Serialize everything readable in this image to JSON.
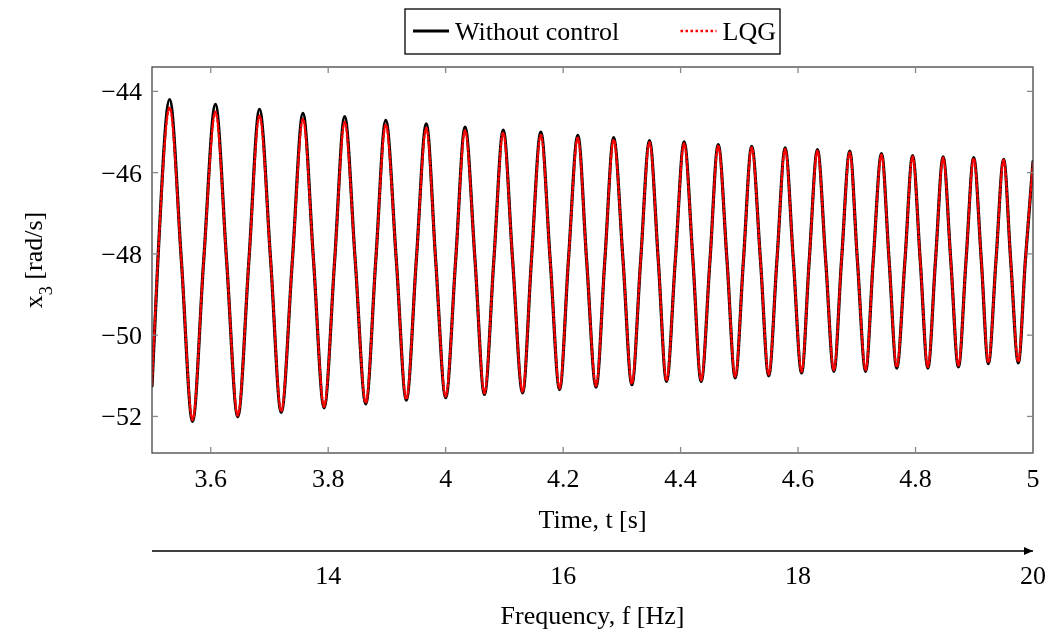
{
  "chart_data": {
    "type": "line",
    "xlabel": "Time, t [s]",
    "ylabel": "x$_{3}$ [rad/s]",
    "x2label": "Frequency, f [Hz]",
    "xlim": [
      3.5,
      5
    ],
    "xticks": [
      {
        "value": 3.6,
        "label": "3.6"
      },
      {
        "value": 3.8,
        "label": "3.8"
      },
      4,
      {
        "value": 4.2,
        "label": "4.2"
      },
      {
        "value": 4.4,
        "label": "4.4"
      },
      {
        "value": 4.6,
        "label": "4.6"
      },
      {
        "value": 4.8,
        "label": "4.8"
      },
      5
    ],
    "x2lim": [
      12.5,
      20
    ],
    "x2ticks": [
      14,
      16,
      18,
      20
    ],
    "ylim": [
      -52.9,
      -43.4
    ],
    "yticks": [
      {
        "value": -52,
        "label": "−52"
      },
      {
        "value": -50,
        "label": "−50"
      },
      {
        "value": -48,
        "label": "−48"
      },
      {
        "value": -46,
        "label": "−46"
      },
      {
        "value": -44,
        "label": "−44"
      }
    ],
    "grid": false,
    "legend": "top",
    "marker": "none",
    "x": [
      3.5,
      3.51,
      3.53,
      3.55,
      3.569,
      3.588,
      3.608,
      3.627,
      3.646,
      3.665,
      3.683,
      3.702,
      3.72,
      3.739,
      3.757,
      3.775,
      3.793,
      3.811,
      3.828,
      3.846,
      3.864,
      3.881,
      3.898,
      3.916,
      3.933,
      3.95,
      3.967,
      3.983,
      4.0,
      4.017,
      4.033,
      4.05,
      4.066,
      4.082,
      4.098,
      4.114,
      4.131,
      4.146,
      4.162,
      4.178,
      4.194,
      4.209,
      4.225,
      4.24,
      4.256,
      4.271,
      4.286,
      4.302,
      4.317,
      4.332,
      4.347,
      4.362,
      4.376,
      4.391,
      4.406,
      4.421,
      4.435,
      4.45,
      4.464,
      4.479,
      4.493,
      4.507,
      4.521,
      4.536,
      4.55,
      4.564,
      4.578,
      4.592,
      4.606,
      4.619,
      4.633,
      4.647,
      4.661,
      4.674,
      4.688,
      4.701,
      4.715,
      4.728,
      4.742,
      4.755,
      4.768,
      4.782,
      4.795,
      4.808,
      4.821,
      4.834,
      4.847,
      4.86,
      4.873,
      4.886,
      4.899,
      4.912,
      4.924,
      4.937,
      4.95,
      4.962,
      4.975,
      4.987,
      5.0
    ],
    "series": [
      {
        "name": "Without control",
        "color": "#000000",
        "line_style": "solid",
        "values": [
          -51.25,
          -48.16,
          -44.2,
          -48.16,
          -52.12,
          -48.16,
          -44.32,
          -48.16,
          -52.01,
          -48.16,
          -44.44,
          -48.16,
          -51.9,
          -48.16,
          -44.54,
          -48.16,
          -51.79,
          -48.16,
          -44.62,
          -48.16,
          -51.69,
          -48.16,
          -44.71,
          -48.16,
          -51.6,
          -48.16,
          -44.8,
          -48.16,
          -51.54,
          -48.16,
          -44.88,
          -48.16,
          -51.46,
          -48.16,
          -44.95,
          -48.16,
          -51.42,
          -48.16,
          -45.0,
          -48.16,
          -51.34,
          -48.16,
          -45.08,
          -48.16,
          -51.28,
          -48.16,
          -45.14,
          -48.16,
          -51.22,
          -48.16,
          -45.21,
          -48.16,
          -51.14,
          -48.16,
          -45.24,
          -48.16,
          -51.14,
          -48.16,
          -45.31,
          -48.16,
          -51.05,
          -48.16,
          -45.35,
          -48.16,
          -51.0,
          -48.16,
          -45.39,
          -48.16,
          -50.93,
          -48.16,
          -45.43,
          -48.16,
          -50.89,
          -48.16,
          -45.47,
          -48.16,
          -50.89,
          -48.16,
          -45.53,
          -48.16,
          -50.81,
          -48.16,
          -45.58,
          -48.16,
          -50.81,
          -48.16,
          -45.61,
          -48.16,
          -50.78,
          -48.16,
          -45.63,
          -48.16,
          -50.7,
          -48.16,
          -45.67,
          -48.16,
          -50.68,
          -48.16,
          -45.73
        ]
      },
      {
        "name": "LQG",
        "color": "#ff0000",
        "line_style": "dotted",
        "values": [
          -51.22,
          -48.16,
          -44.4,
          -48.16,
          -52.09,
          -48.16,
          -44.5,
          -48.16,
          -51.98,
          -48.16,
          -44.6,
          -48.16,
          -51.87,
          -48.16,
          -44.68,
          -48.16,
          -51.76,
          -48.16,
          -44.75,
          -48.16,
          -51.66,
          -48.16,
          -44.82,
          -48.16,
          -51.57,
          -48.16,
          -44.9,
          -48.16,
          -51.51,
          -48.16,
          -44.96,
          -48.16,
          -51.43,
          -48.16,
          -45.02,
          -48.16,
          -51.39,
          -48.16,
          -45.07,
          -48.16,
          -51.31,
          -48.16,
          -45.14,
          -48.16,
          -51.25,
          -48.16,
          -45.19,
          -48.16,
          -51.19,
          -48.16,
          -45.25,
          -48.16,
          -51.11,
          -48.16,
          -45.28,
          -48.16,
          -51.11,
          -48.16,
          -45.34,
          -48.16,
          -51.02,
          -48.16,
          -45.38,
          -48.16,
          -50.97,
          -48.16,
          -45.42,
          -48.16,
          -50.9,
          -48.16,
          -45.46,
          -48.16,
          -50.86,
          -48.16,
          -45.5,
          -48.16,
          -50.86,
          -48.16,
          -45.56,
          -48.16,
          -50.78,
          -48.16,
          -45.6,
          -48.16,
          -50.78,
          -48.16,
          -45.63,
          -48.16,
          -50.75,
          -48.16,
          -45.65,
          -48.16,
          -50.67,
          -48.16,
          -45.69,
          -48.16,
          -50.65,
          -48.16,
          -45.75
        ]
      }
    ]
  }
}
